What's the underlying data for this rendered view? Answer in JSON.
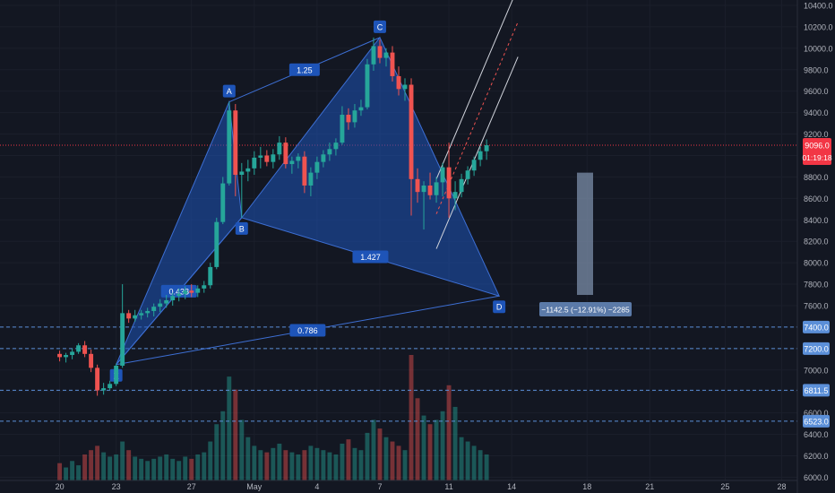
{
  "chart_data": {
    "type": "candlestick",
    "instrument_note": "",
    "price_axis": {
      "ticks": [
        6000,
        6200,
        6400,
        6600,
        6800,
        7000,
        7200,
        7400,
        7600,
        7800,
        8000,
        8200,
        8400,
        8600,
        8800,
        9000,
        9200,
        9400,
        9600,
        9800,
        10000,
        10200,
        10400
      ],
      "tick_labels": [
        "6000.0",
        "6200.0",
        "6400.0",
        "6600.0",
        "6800.0",
        "7000.0",
        "7200.0",
        "7400.0",
        "7600.0",
        "7800.0",
        "8000.0",
        "8200.0",
        "8400.0",
        "8600.0",
        "8800.0",
        "9000.0",
        "9200.0",
        "9400.0",
        "9600.0",
        "9800.0",
        "10000.0",
        "10200.0",
        "10400.0"
      ],
      "range": [
        5970,
        10450
      ]
    },
    "time_axis": {
      "labels": [
        "20",
        "23",
        "27",
        "May",
        "4",
        "7",
        "11",
        "14",
        "18",
        "21",
        "25",
        "28"
      ],
      "bar_index": [
        0,
        9,
        21,
        31,
        41,
        51,
        62,
        72,
        84,
        94,
        106,
        115
      ],
      "range_bars": [
        -9.5,
        117.5
      ]
    },
    "last_price": {
      "label": "9096.0",
      "value": 9096,
      "color": "#f23645"
    },
    "countdown": {
      "label": "01:19:18",
      "color": "#f23645"
    },
    "horizontal_levels": [
      {
        "value": 7400,
        "label": "7400.0",
        "color": "#5b8fd8"
      },
      {
        "value": 7200,
        "label": "7200.0",
        "color": "#5b8fd8"
      },
      {
        "value": 6811.5,
        "label": "6811.5",
        "color": "#5b8fd8"
      },
      {
        "value": 6523,
        "label": "6523.0",
        "color": "#5b8fd8"
      }
    ],
    "harmonic_pattern": {
      "type": "Bat",
      "points": [
        {
          "label": "X",
          "bar": 9,
          "price": 7050
        },
        {
          "label": "A",
          "bar": 27,
          "price": 9500
        },
        {
          "label": "B",
          "bar": 29,
          "price": 8420
        },
        {
          "label": "C",
          "bar": 51,
          "price": 10100
        },
        {
          "label": "D",
          "bar": 70,
          "price": 7690
        }
      ],
      "ratios": [
        {
          "label": "0.438",
          "between": "XB"
        },
        {
          "label": "1.25",
          "between": "AC"
        },
        {
          "label": "1.427",
          "between": "BD"
        },
        {
          "label": "0.786",
          "between": "XD"
        }
      ],
      "fill": "#1e54b8"
    },
    "measure": {
      "label": "−1142.5 (−12.91%) −2285",
      "from_price": 8840,
      "to_price": 7700
    },
    "channel": {
      "bars": [
        [
          60,
          8130
        ],
        [
          73,
          9920
        ]
      ],
      "offset": 650
    },
    "colors": {
      "up": "#26a69a",
      "down": "#ef5350",
      "background": "#131722"
    },
    "candles": [
      [
        7150,
        7180,
        7080,
        7120
      ],
      [
        7120,
        7160,
        7070,
        7140
      ],
      [
        7140,
        7200,
        7100,
        7170
      ],
      [
        7170,
        7250,
        7150,
        7230
      ],
      [
        7230,
        7270,
        7120,
        7150
      ],
      [
        7150,
        7190,
        6980,
        7020
      ],
      [
        7020,
        7050,
        6760,
        6810
      ],
      [
        6810,
        6880,
        6770,
        6830
      ],
      [
        6830,
        6900,
        6810,
        6870
      ],
      [
        6870,
        7060,
        6850,
        7040
      ],
      [
        7040,
        7800,
        7020,
        7530
      ],
      [
        7530,
        7560,
        7440,
        7480
      ],
      [
        7480,
        7560,
        7450,
        7510
      ],
      [
        7510,
        7560,
        7470,
        7530
      ],
      [
        7530,
        7580,
        7490,
        7550
      ],
      [
        7550,
        7620,
        7500,
        7590
      ],
      [
        7590,
        7660,
        7540,
        7620
      ],
      [
        7620,
        7700,
        7580,
        7650
      ],
      [
        7650,
        7720,
        7600,
        7690
      ],
      [
        7690,
        7760,
        7640,
        7710
      ],
      [
        7710,
        7780,
        7660,
        7740
      ],
      [
        7740,
        7800,
        7680,
        7720
      ],
      [
        7720,
        7790,
        7680,
        7760
      ],
      [
        7760,
        7830,
        7720,
        7790
      ],
      [
        7790,
        8000,
        7760,
        7960
      ],
      [
        7960,
        8420,
        7940,
        8380
      ],
      [
        8380,
        8800,
        8360,
        8740
      ],
      [
        8740,
        9500,
        8720,
        9420
      ],
      [
        9420,
        9480,
        8620,
        8820
      ],
      [
        8820,
        8930,
        8420,
        8850
      ],
      [
        8850,
        8960,
        8760,
        8880
      ],
      [
        8880,
        9040,
        8820,
        8980
      ],
      [
        8980,
        9080,
        8880,
        9000
      ],
      [
        9000,
        9050,
        8900,
        8940
      ],
      [
        8940,
        9060,
        8880,
        9010
      ],
      [
        9010,
        9180,
        8960,
        9120
      ],
      [
        9120,
        9170,
        8880,
        8920
      ],
      [
        8920,
        8990,
        8830,
        8950
      ],
      [
        8950,
        9020,
        8880,
        8990
      ],
      [
        8990,
        9040,
        8650,
        8720
      ],
      [
        8720,
        8890,
        8620,
        8840
      ],
      [
        8840,
        8990,
        8780,
        8940
      ],
      [
        8940,
        9050,
        8890,
        9010
      ],
      [
        9010,
        9120,
        8950,
        9060
      ],
      [
        9060,
        9160,
        9000,
        9120
      ],
      [
        9120,
        9460,
        9100,
        9380
      ],
      [
        9380,
        9440,
        9240,
        9310
      ],
      [
        9310,
        9480,
        9260,
        9420
      ],
      [
        9420,
        9520,
        9370,
        9450
      ],
      [
        9450,
        9900,
        9430,
        9850
      ],
      [
        9850,
        10100,
        9790,
        10020
      ],
      [
        10020,
        10080,
        9860,
        9910
      ],
      [
        9910,
        10000,
        9830,
        9960
      ],
      [
        9960,
        10020,
        9690,
        9740
      ],
      [
        9740,
        9830,
        9560,
        9620
      ],
      [
        9620,
        9720,
        9510,
        9660
      ],
      [
        9660,
        9720,
        8440,
        8780
      ],
      [
        8780,
        8880,
        8560,
        8660
      ],
      [
        8660,
        8760,
        8310,
        8720
      ],
      [
        8720,
        8840,
        8590,
        8630
      ],
      [
        8630,
        8800,
        8560,
        8750
      ],
      [
        8750,
        8930,
        8620,
        8890
      ],
      [
        8890,
        9120,
        8420,
        8600
      ],
      [
        8600,
        8760,
        8490,
        8660
      ],
      [
        8660,
        8830,
        8610,
        8780
      ],
      [
        8780,
        8900,
        8730,
        8860
      ],
      [
        8860,
        8990,
        8810,
        8960
      ],
      [
        8960,
        9080,
        8900,
        9040
      ],
      [
        9040,
        9150,
        8960,
        9096
      ]
    ],
    "volumes": [
      40,
      30,
      45,
      35,
      60,
      70,
      80,
      65,
      55,
      60,
      90,
      70,
      55,
      50,
      45,
      50,
      55,
      60,
      50,
      45,
      55,
      50,
      60,
      65,
      90,
      130,
      160,
      240,
      210,
      140,
      100,
      80,
      70,
      65,
      75,
      85,
      70,
      65,
      60,
      70,
      80,
      75,
      70,
      65,
      60,
      85,
      95,
      75,
      70,
      110,
      140,
      120,
      100,
      90,
      80,
      70,
      290,
      190,
      150,
      130,
      140,
      160,
      220,
      170,
      100,
      90,
      80,
      70,
      60
    ],
    "volume_colors": [
      "d",
      "u",
      "u",
      "u",
      "d",
      "d",
      "d",
      "u",
      "u",
      "u",
      "u",
      "d",
      "u",
      "u",
      "u",
      "u",
      "u",
      "u",
      "u",
      "u",
      "u",
      "d",
      "u",
      "u",
      "u",
      "u",
      "u",
      "u",
      "d",
      "u",
      "u",
      "u",
      "u",
      "d",
      "u",
      "u",
      "d",
      "u",
      "u",
      "d",
      "u",
      "u",
      "u",
      "u",
      "u",
      "u",
      "d",
      "u",
      "u",
      "u",
      "u",
      "d",
      "u",
      "d",
      "d",
      "u",
      "d",
      "d",
      "u",
      "d",
      "u",
      "u",
      "d",
      "u",
      "u",
      "u",
      "u",
      "u",
      "u"
    ]
  }
}
